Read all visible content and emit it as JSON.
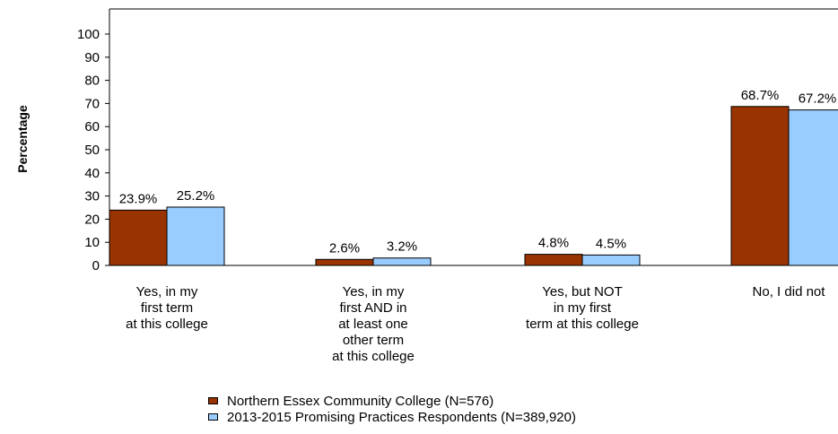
{
  "chart_data": {
    "type": "bar",
    "ylabel": "Percentage",
    "xlabel": "",
    "ylim": [
      0,
      100
    ],
    "yticks": [
      0,
      10,
      20,
      30,
      40,
      50,
      60,
      70,
      80,
      90,
      100
    ],
    "categories": [
      [
        "Yes, in my",
        "first term",
        "at this college"
      ],
      [
        "Yes, in my",
        "first AND in",
        "at least one",
        "other term",
        "at this college"
      ],
      [
        "Yes, but NOT",
        "in my first",
        "term at this college"
      ],
      [
        "No, I did not"
      ]
    ],
    "series": [
      {
        "name": "Northern Essex Community College (N=576)",
        "color": "#993300",
        "values": [
          23.9,
          2.6,
          4.8,
          68.7
        ],
        "labels": [
          "23.9%",
          "2.6%",
          "4.8%",
          "68.7%"
        ]
      },
      {
        "name": "2013-2015 Promising Practices Respondents (N=389,920)",
        "color": "#99ccff",
        "values": [
          25.2,
          3.2,
          4.5,
          67.2
        ],
        "labels": [
          "25.2%",
          "3.2%",
          "4.5%",
          "67.2%"
        ]
      }
    ],
    "legend_position": "bottom"
  }
}
